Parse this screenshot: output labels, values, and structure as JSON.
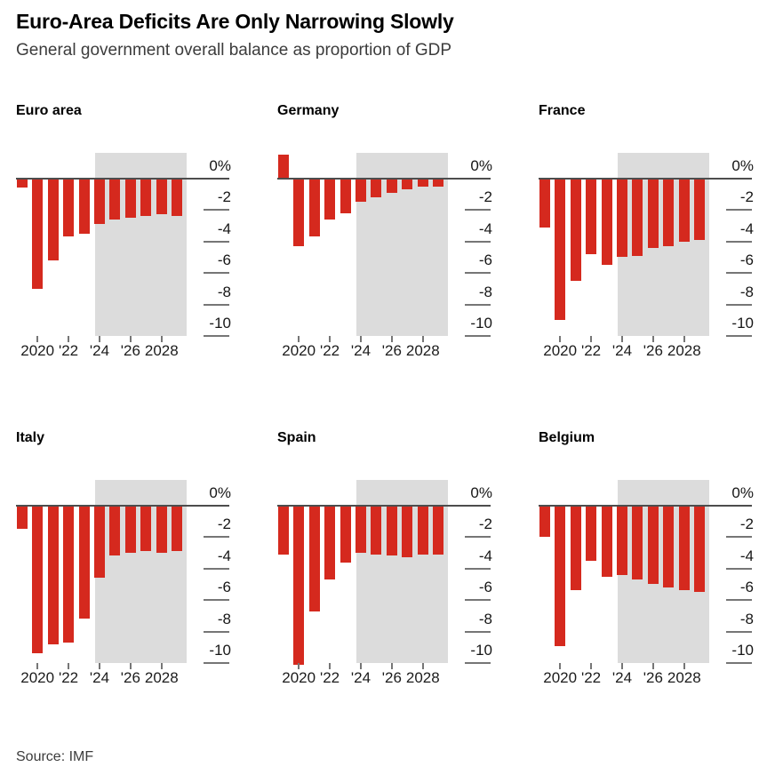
{
  "header": {
    "title": "Euro-Area Deficits Are Only Narrowing Slowly",
    "subtitle": "General government overall balance as proportion of GDP"
  },
  "footer": {
    "source": "Source: IMF"
  },
  "chart_data": {
    "type": "bar",
    "title": "Euro-Area Deficits Are Only Narrowing Slowly",
    "subtitle": "General government overall balance as proportion of GDP",
    "unit": "% of GDP",
    "source": "Source: IMF",
    "years": [
      2019,
      2020,
      2021,
      2022,
      2023,
      2024,
      2025,
      2026,
      2027,
      2028,
      2029
    ],
    "x_tick_years": [
      2020,
      2022,
      2024,
      2026,
      2028
    ],
    "x_tick_labels": [
      "2020",
      "'22",
      "'24",
      "'26",
      "2028"
    ],
    "y_ticks": [
      0,
      -2,
      -4,
      -6,
      -8,
      -10
    ],
    "y_tick_labels": [
      "0%",
      "-2",
      "-4",
      "-6",
      "-8",
      "-10"
    ],
    "ylim": [
      1.6,
      -10
    ],
    "grid": false,
    "legend": false,
    "forecast_start_year": 2024,
    "forecast_band_meaning": "shaded region covers 2024-2029 projections",
    "colors": {
      "bar": "#d5291e",
      "forecast_band": "#dcdcdc",
      "zero_line": "#4d4d4d",
      "tick": "#767676",
      "axis_text": "#161616"
    },
    "panels": [
      {
        "title": "Euro area",
        "values": [
          -0.6,
          -7.0,
          -5.2,
          -3.7,
          -3.5,
          -2.9,
          -2.6,
          -2.5,
          -2.4,
          -2.3,
          -2.4
        ]
      },
      {
        "title": "Germany",
        "values": [
          1.5,
          -4.3,
          -3.7,
          -2.6,
          -2.2,
          -1.5,
          -1.2,
          -0.9,
          -0.7,
          -0.5,
          -0.5
        ]
      },
      {
        "title": "France",
        "values": [
          -3.1,
          -9.0,
          -6.5,
          -4.8,
          -5.5,
          -5.0,
          -4.9,
          -4.4,
          -4.3,
          -4.0,
          -3.9
        ]
      },
      {
        "title": "Italy",
        "values": [
          -1.5,
          -9.4,
          -8.8,
          -8.7,
          -7.2,
          -4.6,
          -3.2,
          -3.0,
          -2.9,
          -3.0,
          -2.9
        ]
      },
      {
        "title": "Spain",
        "values": [
          -3.1,
          -10.1,
          -6.7,
          -4.7,
          -3.6,
          -3.0,
          -3.1,
          -3.2,
          -3.3,
          -3.1,
          -3.1
        ]
      },
      {
        "title": "Belgium",
        "values": [
          -2.0,
          -8.9,
          -5.4,
          -3.5,
          -4.5,
          -4.4,
          -4.7,
          -5.0,
          -5.2,
          -5.4,
          -5.5
        ]
      }
    ]
  }
}
